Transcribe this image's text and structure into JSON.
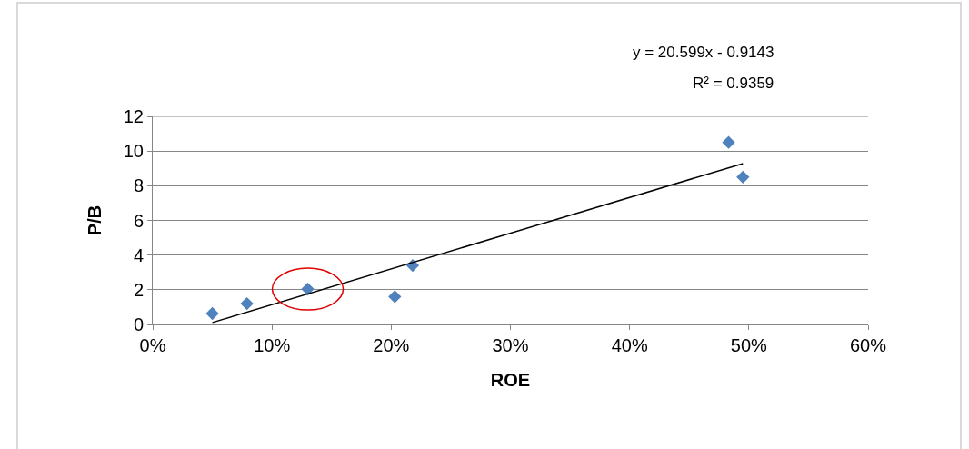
{
  "chart_data": {
    "type": "scatter",
    "xlabel": "ROE",
    "ylabel": "P/B",
    "annotations": [
      "y = 20.599x - 0.9143",
      "R² = 0.9359"
    ],
    "series": [
      {
        "color": "#4f81bd",
        "marker": "diamond",
        "x": [
          5.0,
          7.9,
          13.0,
          20.3,
          21.8,
          48.3,
          49.5
        ],
        "values": [
          0.63,
          1.2,
          2.04,
          1.6,
          3.4,
          10.5,
          8.5
        ]
      },
      {
        "type": "line",
        "color": "#000000",
        "marker": "none",
        "x": [
          5.0,
          49.5
        ],
        "values": [
          0.11,
          9.28
        ]
      }
    ],
    "xlim": [
      0,
      60
    ],
    "xticks": [
      {
        "value": 0,
        "label": "0%"
      },
      {
        "value": 10,
        "label": "10%"
      },
      {
        "value": 20,
        "label": "20%"
      },
      {
        "value": 30,
        "label": "30%"
      },
      {
        "value": 40,
        "label": "40%"
      },
      {
        "value": 50,
        "label": "50%"
      },
      {
        "value": 60,
        "label": "60%"
      }
    ],
    "ylim": [
      0,
      12
    ],
    "yticks": [
      0,
      2,
      4,
      6,
      8,
      10,
      12
    ],
    "grid": "y",
    "legend": false
  }
}
